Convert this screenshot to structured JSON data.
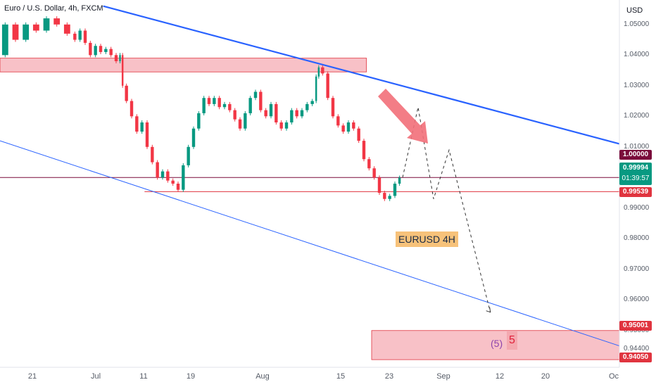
{
  "chart_data": {
    "type": "candlestick",
    "title": "Euro / U.S. Dollar, 4h, FXCM",
    "currency": "USD",
    "y_ticks": [
      "1.05000",
      "1.04000",
      "1.03000",
      "1.02000",
      "1.01000",
      "0.99000",
      "0.98000",
      "0.97000",
      "0.96000",
      "0.95000",
      "0.94400"
    ],
    "x_ticks": [
      "21",
      "Jul",
      "11",
      "19",
      "Aug",
      "15",
      "23",
      "Sep",
      "12",
      "20",
      "Oc"
    ],
    "ylim": [
      0.938,
      1.058
    ],
    "current_price": "0.99994",
    "countdown": "01:39:57",
    "price_boxes": [
      {
        "label": "1.00000",
        "value": 1.0,
        "color": "#7a0c3b"
      },
      {
        "label": "0.99539",
        "value": 0.99539,
        "color": "#e0343f"
      },
      {
        "label": "0.95001",
        "value": 0.95001,
        "color": "#e0343f"
      },
      {
        "label": "0.94050",
        "value": 0.9405,
        "color": "#e0343f"
      }
    ],
    "price_path": [
      [
        0.0,
        1.04
      ],
      [
        2.0,
        1.05
      ],
      [
        4.0,
        1.045
      ],
      [
        6.0,
        1.05
      ],
      [
        8.0,
        1.048
      ],
      [
        10.0,
        1.052
      ],
      [
        12.0,
        1.05
      ],
      [
        14.0,
        1.047
      ],
      [
        15.0,
        1.045
      ],
      [
        16.0,
        1.048
      ],
      [
        17.0,
        1.044
      ],
      [
        18.0,
        1.04
      ],
      [
        19.0,
        1.043
      ],
      [
        20.0,
        1.041
      ],
      [
        21.0,
        1.042
      ],
      [
        22.0,
        1.04
      ],
      [
        23.0,
        1.038
      ],
      [
        23.5,
        1.04
      ],
      [
        24.0,
        1.03
      ],
      [
        25.0,
        1.025
      ],
      [
        26.0,
        1.02
      ],
      [
        27.0,
        1.015
      ],
      [
        28.0,
        1.018
      ],
      [
        29.0,
        1.01
      ],
      [
        30.0,
        1.005
      ],
      [
        31.0,
        1.0
      ],
      [
        32.0,
        1.002
      ],
      [
        33.0,
        0.999
      ],
      [
        34.0,
        0.998
      ],
      [
        35.0,
        0.996
      ],
      [
        36.0,
        1.004
      ],
      [
        37.0,
        1.01
      ],
      [
        38.0,
        1.016
      ],
      [
        39.0,
        1.021
      ],
      [
        40.0,
        1.026
      ],
      [
        41.0,
        1.024
      ],
      [
        42.0,
        1.026
      ],
      [
        43.0,
        1.023
      ],
      [
        44.0,
        1.024
      ],
      [
        45.0,
        1.022
      ],
      [
        46.0,
        1.019
      ],
      [
        47.0,
        1.016
      ],
      [
        48.0,
        1.021
      ],
      [
        49.0,
        1.026
      ],
      [
        50.0,
        1.028
      ],
      [
        51.0,
        1.022
      ],
      [
        52.0,
        1.02
      ],
      [
        53.0,
        1.024
      ],
      [
        54.0,
        1.018
      ],
      [
        55.0,
        1.016
      ],
      [
        56.0,
        1.018
      ],
      [
        57.0,
        1.022
      ],
      [
        58.0,
        1.02
      ],
      [
        59.0,
        1.022
      ],
      [
        60.0,
        1.024
      ],
      [
        61.0,
        1.025
      ],
      [
        61.5,
        1.033
      ],
      [
        62.0,
        1.036
      ],
      [
        63.0,
        1.034
      ],
      [
        64.0,
        1.026
      ],
      [
        65.0,
        1.02
      ],
      [
        66.0,
        1.017
      ],
      [
        67.0,
        1.015
      ],
      [
        68.0,
        1.018
      ],
      [
        69.0,
        1.016
      ],
      [
        70.0,
        1.012
      ],
      [
        71.0,
        1.006
      ],
      [
        72.0,
        1.003
      ],
      [
        73.0,
        1.0
      ],
      [
        74.0,
        0.995
      ],
      [
        75.0,
        0.993
      ],
      [
        76.0,
        0.994
      ],
      [
        77.0,
        0.998
      ],
      [
        77.8,
        0.99994
      ]
    ],
    "projection_path": [
      [
        78.0,
        1.0
      ],
      [
        81.0,
        1.023
      ],
      [
        84.0,
        0.993
      ],
      [
        87.0,
        1.009
      ],
      [
        95.0,
        0.956
      ]
    ],
    "resistance_zone": {
      "y_top": 1.039,
      "y_bottom": 1.0345
    },
    "target_zone": {
      "y_top": 0.95001,
      "y_bottom": 0.9405
    },
    "horizontal_lines": [
      {
        "value": 1.0,
        "color": "#7a0c3b"
      },
      {
        "value": 0.99539,
        "color": "#e0343f"
      }
    ],
    "trend_lines": [
      {
        "x1": 20.0,
        "y1": 1.056,
        "x2": 120.0,
        "y2": 1.011,
        "color": "#2962ff",
        "width": 2.2
      },
      {
        "x1": 0.0,
        "y1": 1.012,
        "x2": 120.0,
        "y2": 0.945,
        "color": "#2962ff",
        "width": 1.0
      }
    ],
    "annotation_label": "EURUSD 4H",
    "wave_label": "(5)",
    "wave_number": "5"
  }
}
